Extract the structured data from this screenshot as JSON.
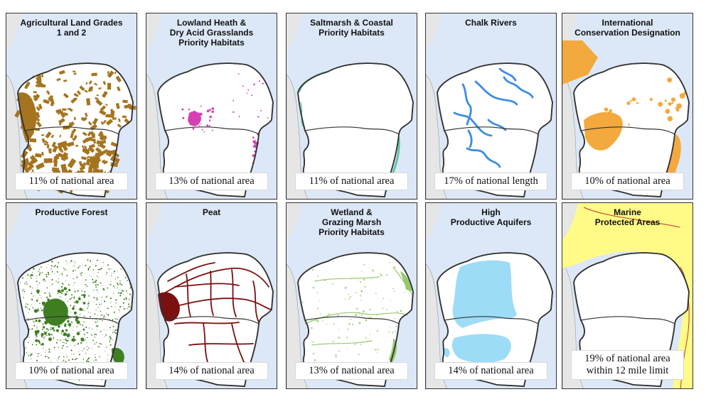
{
  "colors": {
    "sea": "#dce8f7",
    "land_outside": "#e6e6e6",
    "region": "#ffffff",
    "border": "#333333",
    "marine_yellow": "#fffb86"
  },
  "panels": [
    {
      "title": "Agricultural Land Grades\n1 and 2",
      "stat": "11% of national area",
      "layer": "agri",
      "color": "#a5741f",
      "icon": "map-layer"
    },
    {
      "title": "Lowland Heath &\nDry Acid Grasslands\nPriority Habitats",
      "stat": "13% of national area",
      "layer": "heath",
      "color": "#d63fb4",
      "icon": "map-layer"
    },
    {
      "title": "Saltmarsh & Coastal\nPriority Habitats",
      "stat": "11% of national area",
      "layer": "salt",
      "color": "#5cc4a0",
      "icon": "map-layer"
    },
    {
      "title": "Chalk Rivers",
      "stat": "17% of national length",
      "layer": "rivers",
      "color": "#3c8de0",
      "icon": "map-layer"
    },
    {
      "title": "International\nConservation Designation",
      "stat": "10% of national area",
      "layer": "intl",
      "color": "#f3a93d",
      "icon": "map-layer"
    },
    {
      "title": "Productive Forest",
      "stat": "10% of national area",
      "layer": "forest",
      "color": "#3f7f21",
      "icon": "map-layer"
    },
    {
      "title": "Peat",
      "stat": "14% of national area",
      "layer": "peat",
      "color": "#7b1010",
      "icon": "map-layer"
    },
    {
      "title": "Wetland &\nGrazing Marsh\nPriority Habitats",
      "stat": "13% of national area",
      "layer": "wetland",
      "color": "#96c96a",
      "icon": "map-layer"
    },
    {
      "title": "High\nProductive Aquifers",
      "stat": "14% of national area",
      "layer": "aquifer",
      "color": "#9ddcf6",
      "icon": "map-layer"
    },
    {
      "title": "Marine\nProtected Areas",
      "stat": "19% of national area\nwithin 12 mile limit",
      "layer": "marine",
      "color": "#f1c400",
      "icon": "map-layer"
    }
  ]
}
